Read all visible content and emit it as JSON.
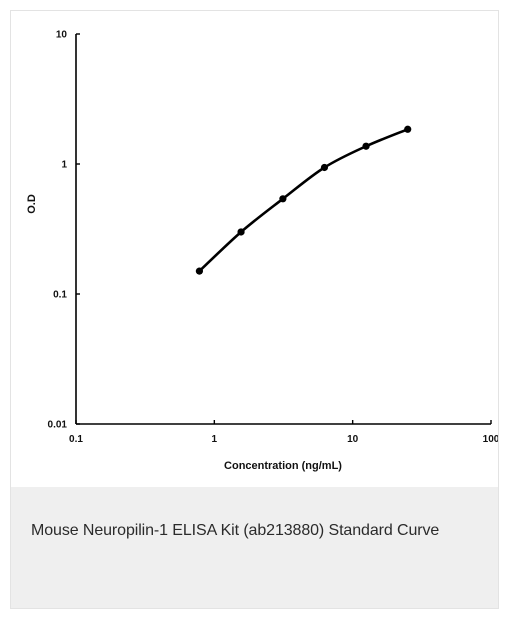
{
  "chart_data": {
    "type": "line",
    "xlabel": "Concentration (ng/mL)",
    "ylabel": "O.D",
    "xscale": "log",
    "yscale": "log",
    "xlim": [
      0.1,
      100
    ],
    "ylim": [
      0.01,
      10
    ],
    "grid": false,
    "legend": "none",
    "x_ticks": [
      "0.1",
      "1",
      "10",
      "100"
    ],
    "y_ticks": [
      "0.01",
      "0.1",
      "1",
      "10"
    ],
    "series": [
      {
        "x": [
          0.78,
          1.56,
          3.13,
          6.25,
          12.5,
          25
        ],
        "y": [
          0.15,
          0.3,
          0.54,
          0.94,
          1.37,
          1.85
        ],
        "color": "#000000"
      }
    ]
  },
  "caption": {
    "text": "Mouse Neuropilin-1 ELISA Kit (ab213880) Standard Curve"
  }
}
